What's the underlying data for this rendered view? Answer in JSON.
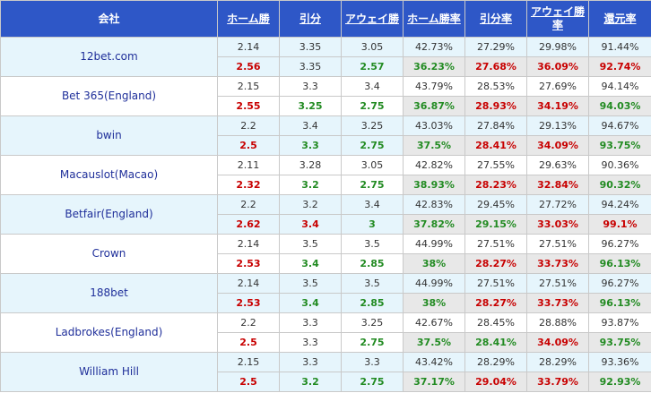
{
  "headers": [
    "会社",
    "ホーム勝",
    "引分",
    "アウェイ勝",
    "ホーム勝率",
    "引分率",
    "アウェイ勝率",
    "還元率"
  ],
  "rows": [
    {
      "company": "12bet.com",
      "open": [
        "2.14",
        "3.35",
        "3.05",
        "42.73%",
        "27.29%",
        "29.98%",
        "91.44%"
      ],
      "live": [
        "2.56",
        "3.35",
        "2.57",
        "36.23%",
        "27.68%",
        "36.09%",
        "92.74%"
      ],
      "live_colors": [
        "red",
        "",
        "green",
        "green",
        "red",
        "red",
        "red"
      ]
    },
    {
      "company": "Bet 365(England)",
      "open": [
        "2.15",
        "3.3",
        "3.4",
        "43.79%",
        "28.53%",
        "27.69%",
        "94.14%"
      ],
      "live": [
        "2.55",
        "3.25",
        "2.75",
        "36.87%",
        "28.93%",
        "34.19%",
        "94.03%"
      ],
      "live_colors": [
        "red",
        "green",
        "green",
        "green",
        "red",
        "red",
        "green"
      ]
    },
    {
      "company": "bwin",
      "open": [
        "2.2",
        "3.4",
        "3.25",
        "43.03%",
        "27.84%",
        "29.13%",
        "94.67%"
      ],
      "live": [
        "2.5",
        "3.3",
        "2.75",
        "37.5%",
        "28.41%",
        "34.09%",
        "93.75%"
      ],
      "live_colors": [
        "red",
        "green",
        "green",
        "green",
        "red",
        "red",
        "green"
      ]
    },
    {
      "company": "Macauslot(Macao)",
      "open": [
        "2.11",
        "3.28",
        "3.05",
        "42.82%",
        "27.55%",
        "29.63%",
        "90.36%"
      ],
      "live": [
        "2.32",
        "3.2",
        "2.75",
        "38.93%",
        "28.23%",
        "32.84%",
        "90.32%"
      ],
      "live_colors": [
        "red",
        "green",
        "green",
        "green",
        "red",
        "red",
        "green"
      ]
    },
    {
      "company": "Betfair(England)",
      "open": [
        "2.2",
        "3.2",
        "3.4",
        "42.83%",
        "29.45%",
        "27.72%",
        "94.24%"
      ],
      "live": [
        "2.62",
        "3.4",
        "3",
        "37.82%",
        "29.15%",
        "33.03%",
        "99.1%"
      ],
      "live_colors": [
        "red",
        "red",
        "green",
        "green",
        "green",
        "red",
        "red"
      ]
    },
    {
      "company": "Crown",
      "open": [
        "2.14",
        "3.5",
        "3.5",
        "44.99%",
        "27.51%",
        "27.51%",
        "96.27%"
      ],
      "live": [
        "2.53",
        "3.4",
        "2.85",
        "38%",
        "28.27%",
        "33.73%",
        "96.13%"
      ],
      "live_colors": [
        "red",
        "green",
        "green",
        "green",
        "red",
        "red",
        "green"
      ]
    },
    {
      "company": "188bet",
      "open": [
        "2.14",
        "3.5",
        "3.5",
        "44.99%",
        "27.51%",
        "27.51%",
        "96.27%"
      ],
      "live": [
        "2.53",
        "3.4",
        "2.85",
        "38%",
        "28.27%",
        "33.73%",
        "96.13%"
      ],
      "live_colors": [
        "red",
        "green",
        "green",
        "green",
        "red",
        "red",
        "green"
      ]
    },
    {
      "company": "Ladbrokes(England)",
      "open": [
        "2.2",
        "3.3",
        "3.25",
        "42.67%",
        "28.45%",
        "28.88%",
        "93.87%"
      ],
      "live": [
        "2.5",
        "3.3",
        "2.75",
        "37.5%",
        "28.41%",
        "34.09%",
        "93.75%"
      ],
      "live_colors": [
        "red",
        "",
        "green",
        "green",
        "green",
        "red",
        "green"
      ]
    },
    {
      "company": "William Hill",
      "open": [
        "2.15",
        "3.3",
        "3.3",
        "43.42%",
        "28.29%",
        "28.29%",
        "93.36%"
      ],
      "live": [
        "2.5",
        "3.2",
        "2.75",
        "37.17%",
        "29.04%",
        "33.79%",
        "92.93%"
      ],
      "live_colors": [
        "red",
        "green",
        "green",
        "green",
        "red",
        "red",
        "green"
      ]
    }
  ],
  "colors": {
    "header_bg": "#2e57c7",
    "up": "#c80000",
    "down": "#228b22",
    "row_tint": "#e6f5fc",
    "rate_bg": "#e8e8e8"
  }
}
